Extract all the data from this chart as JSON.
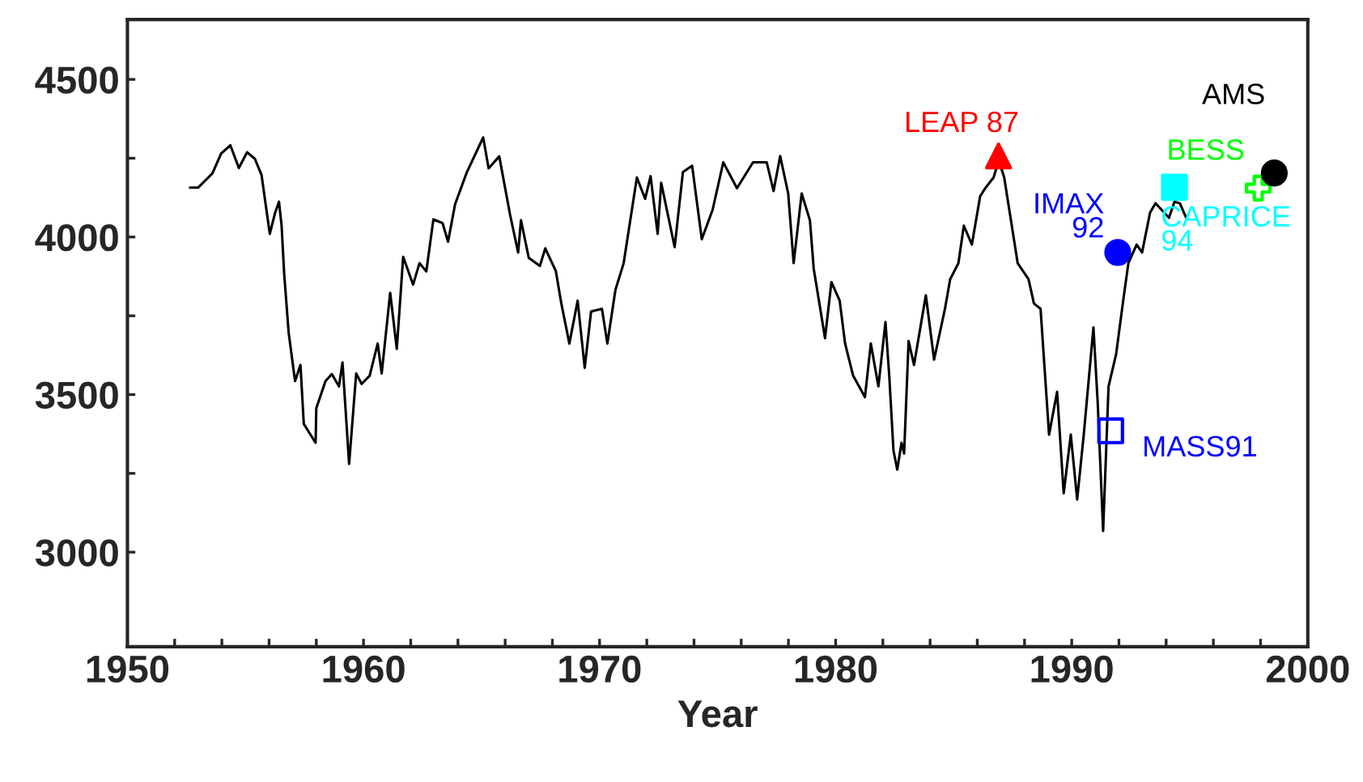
{
  "chart_data": {
    "type": "line",
    "xlabel": "Year",
    "xlim": [
      1950,
      2000
    ],
    "xticks": [
      1950,
      {
        "value": 1952,
        "label": null
      },
      {
        "value": 1954,
        "label": null
      },
      {
        "value": 1956,
        "label": null
      },
      {
        "value": 1958,
        "label": null
      },
      1960,
      {
        "value": 1962,
        "label": null
      },
      {
        "value": 1964,
        "label": null
      },
      {
        "value": 1966,
        "label": null
      },
      {
        "value": 1968,
        "label": null
      },
      1970,
      {
        "value": 1972,
        "label": null
      },
      {
        "value": 1974,
        "label": null
      },
      {
        "value": 1976,
        "label": null
      },
      {
        "value": 1978,
        "label": null
      },
      1980,
      {
        "value": 1982,
        "label": null
      },
      {
        "value": 1984,
        "label": null
      },
      {
        "value": 1986,
        "label": null
      },
      {
        "value": 1988,
        "label": null
      },
      1990,
      {
        "value": 1992,
        "label": null
      },
      {
        "value": 1994,
        "label": null
      },
      {
        "value": 1996,
        "label": null
      },
      {
        "value": 1998,
        "label": null
      },
      2000
    ],
    "ylim": [
      2700,
      4690
    ],
    "yticks": [
      3000,
      {
        "value": 3250,
        "label": null
      },
      3500,
      {
        "value": 3750,
        "label": null
      },
      4000,
      {
        "value": 4250,
        "label": null
      },
      4500
    ],
    "grid": false,
    "legend": false,
    "series": [
      {
        "color": "#000000",
        "marker": "none",
        "line_style": "solid",
        "x": [
          1952.65,
          1953.0,
          1953.6,
          1953.97,
          1954.36,
          1954.72,
          1955.07,
          1955.4,
          1955.68,
          1956.03,
          1956.26,
          1956.42,
          1956.53,
          1956.64,
          1956.83,
          1956.95,
          1957.1,
          1957.33,
          1957.47,
          1957.97,
          1958.0,
          1958.39,
          1958.66,
          1958.96,
          1959.11,
          1959.39,
          1959.69,
          1959.92,
          1960.26,
          1960.6,
          1960.77,
          1961.13,
          1961.41,
          1961.68,
          1962.1,
          1962.37,
          1962.66,
          1962.96,
          1963.35,
          1963.58,
          1963.88,
          1964.38,
          1965.07,
          1965.3,
          1965.75,
          1966.21,
          1966.55,
          1966.67,
          1967.0,
          1967.47,
          1967.7,
          1968.15,
          1968.38,
          1968.72,
          1969.07,
          1969.37,
          1969.64,
          1970.1,
          1970.33,
          1970.67,
          1971.02,
          1971.58,
          1971.93,
          1972.16,
          1972.46,
          1972.61,
          1973.18,
          1973.53,
          1973.92,
          1974.33,
          1974.79,
          1975.24,
          1975.82,
          1976.5,
          1977.08,
          1977.37,
          1977.65,
          1977.99,
          1978.22,
          1978.56,
          1978.91,
          1979.07,
          1979.55,
          1979.82,
          1980.17,
          1980.4,
          1980.74,
          1981.24,
          1981.49,
          1981.81,
          1982.11,
          1982.27,
          1982.45,
          1982.61,
          1982.79,
          1982.9,
          1983.09,
          1983.32,
          1983.82,
          1984.17,
          1984.63,
          1984.85,
          1985.2,
          1985.43,
          1985.77,
          1986.12,
          1986.34,
          1986.69,
          1986.91,
          1987.14,
          1987.71,
          1988.17,
          1988.4,
          1988.68,
          1989.04,
          1989.38,
          1989.66,
          1989.96,
          1990.23,
          1990.51,
          1990.92,
          1991.1,
          1991.33,
          1991.56,
          1991.88,
          1992.18,
          1992.4,
          1992.75,
          1992.98,
          1993.32,
          1993.55,
          1994.12,
          1994.35,
          1994.58,
          1994.85
        ],
        "values": [
          4157,
          4157,
          4202,
          4265,
          4291,
          4219,
          4269,
          4248,
          4197,
          4010,
          4078,
          4112,
          4036,
          3883,
          3696,
          3628,
          3543,
          3594,
          3407,
          3347,
          3457,
          3543,
          3565,
          3526,
          3602,
          3280,
          3567,
          3534,
          3560,
          3662,
          3567,
          3823,
          3645,
          3937,
          3849,
          3917,
          3891,
          4056,
          4044,
          3985,
          4104,
          4206,
          4316,
          4218,
          4256,
          4070,
          3951,
          4053,
          3934,
          3908,
          3964,
          3891,
          3789,
          3662,
          3798,
          3585,
          3764,
          3772,
          3662,
          3832,
          3917,
          4189,
          4121,
          4193,
          4010,
          4172,
          3968,
          4206,
          4226,
          3993,
          4087,
          4237,
          4155,
          4237,
          4237,
          4146,
          4257,
          4138,
          3917,
          4138,
          4053,
          3900,
          3679,
          3857,
          3798,
          3662,
          3560,
          3492,
          3662,
          3526,
          3730,
          3560,
          3322,
          3262,
          3347,
          3313,
          3670,
          3594,
          3815,
          3611,
          3772,
          3866,
          3917,
          4036,
          3976,
          4129,
          4155,
          4189,
          4243,
          4189,
          3917,
          3866,
          3789,
          3772,
          3373,
          3509,
          3187,
          3373,
          3167,
          3373,
          3713,
          3475,
          3067,
          3526,
          3628,
          3798,
          3917,
          3976,
          3951,
          4078,
          4107,
          4061,
          4112,
          4107,
          4061
        ]
      },
      {
        "type": "scatter",
        "name": "LEAP 87",
        "color": "#ff0000",
        "marker": "triangle",
        "x": [
          1986.9
        ],
        "values": [
          4257
        ]
      },
      {
        "type": "scatter",
        "name": "IMAX\n92",
        "color": "#0000ff",
        "marker": "circle",
        "x": [
          1991.95
        ],
        "values": [
          3951
        ]
      },
      {
        "type": "scatter",
        "name": "MASS91",
        "color": "#0000ff",
        "marker": "square",
        "x": [
          1991.65
        ],
        "values": [
          3385
        ]
      },
      {
        "type": "scatter",
        "name": "CAPRICE\n94",
        "color": "#00ffff",
        "marker": "square",
        "x": [
          1994.35
        ],
        "values": [
          4158
        ]
      },
      {
        "type": "scatter",
        "name": "BESS",
        "color": "#00ff00",
        "marker": "cross",
        "x": [
          1997.9
        ],
        "values": [
          4155
        ]
      },
      {
        "type": "scatter",
        "name": "AMS",
        "color": "#000000",
        "marker": "circle",
        "x": [
          1998.58
        ],
        "values": [
          4203
        ]
      }
    ]
  }
}
